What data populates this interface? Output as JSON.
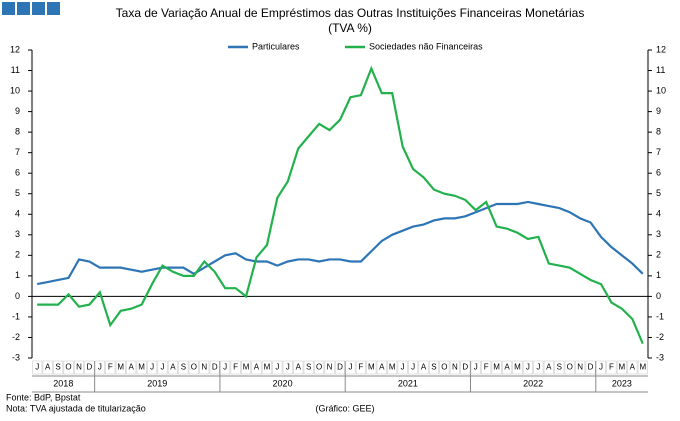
{
  "header": {
    "footer_source": "Fonte: BdP, Bpstat",
    "footer_note": "Nota: TVA ajustada de titularização",
    "footer_credit": "(Gráfico: GEE)"
  },
  "chart_data": {
    "type": "line",
    "title": "Taxa de Variação Anual de Empréstimos das Outras Instituições Financeiras Monetárias",
    "subtitle": "(TVA %)",
    "categories": [
      "J",
      "A",
      "S",
      "O",
      "N",
      "D",
      "J",
      "F",
      "M",
      "A",
      "M",
      "J",
      "J",
      "A",
      "S",
      "O",
      "N",
      "D",
      "J",
      "F",
      "M",
      "A",
      "M",
      "J",
      "J",
      "A",
      "S",
      "O",
      "N",
      "D",
      "J",
      "F",
      "M",
      "A",
      "M",
      "J",
      "J",
      "A",
      "S",
      "O",
      "N",
      "D",
      "J",
      "F",
      "M",
      "A",
      "M",
      "J",
      "J",
      "A",
      "S",
      "O",
      "N",
      "D",
      "J",
      "F",
      "M",
      "A",
      "M"
    ],
    "years": [
      "2018",
      "2019",
      "2020",
      "2021",
      "2022",
      "2023"
    ],
    "series": [
      {
        "name": "Particulares",
        "color": "#2e75b6",
        "values": [
          0.6,
          0.7,
          0.8,
          0.9,
          1.8,
          1.7,
          1.4,
          1.4,
          1.4,
          1.3,
          1.2,
          1.3,
          1.4,
          1.4,
          1.4,
          1.1,
          1.4,
          1.7,
          2.0,
          2.1,
          1.8,
          1.7,
          1.7,
          1.5,
          1.7,
          1.8,
          1.8,
          1.7,
          1.8,
          1.8,
          1.7,
          1.7,
          2.2,
          2.7,
          3.0,
          3.2,
          3.4,
          3.5,
          3.7,
          3.8,
          3.8,
          3.9,
          4.1,
          4.3,
          4.5,
          4.5,
          4.5,
          4.6,
          4.5,
          4.4,
          4.3,
          4.1,
          3.8,
          3.6,
          2.9,
          2.4,
          2.0,
          1.6,
          1.1
        ]
      },
      {
        "name": "Sociedades não Financeiras",
        "color": "#22b14c",
        "values": [
          -0.4,
          -0.4,
          -0.4,
          0.1,
          -0.5,
          -0.4,
          0.2,
          -1.4,
          -0.7,
          -0.6,
          -0.4,
          0.6,
          1.5,
          1.2,
          1.0,
          1.0,
          1.7,
          1.2,
          0.4,
          0.4,
          0.0,
          1.9,
          2.5,
          4.8,
          5.6,
          7.2,
          7.8,
          8.4,
          8.1,
          8.6,
          9.7,
          9.8,
          11.1,
          9.9,
          9.9,
          7.3,
          6.2,
          5.8,
          5.2,
          5.0,
          4.9,
          4.7,
          4.2,
          4.6,
          3.4,
          3.3,
          3.1,
          2.8,
          2.9,
          1.6,
          1.5,
          1.4,
          1.1,
          0.8,
          0.6,
          -0.3,
          -0.6,
          -1.1,
          -2.3
        ]
      }
    ],
    "ylim": [
      -3,
      12
    ],
    "yticks": [
      -3,
      -2,
      -1,
      0,
      1,
      2,
      3,
      4,
      5,
      6,
      7,
      8,
      9,
      10,
      11,
      12
    ]
  }
}
